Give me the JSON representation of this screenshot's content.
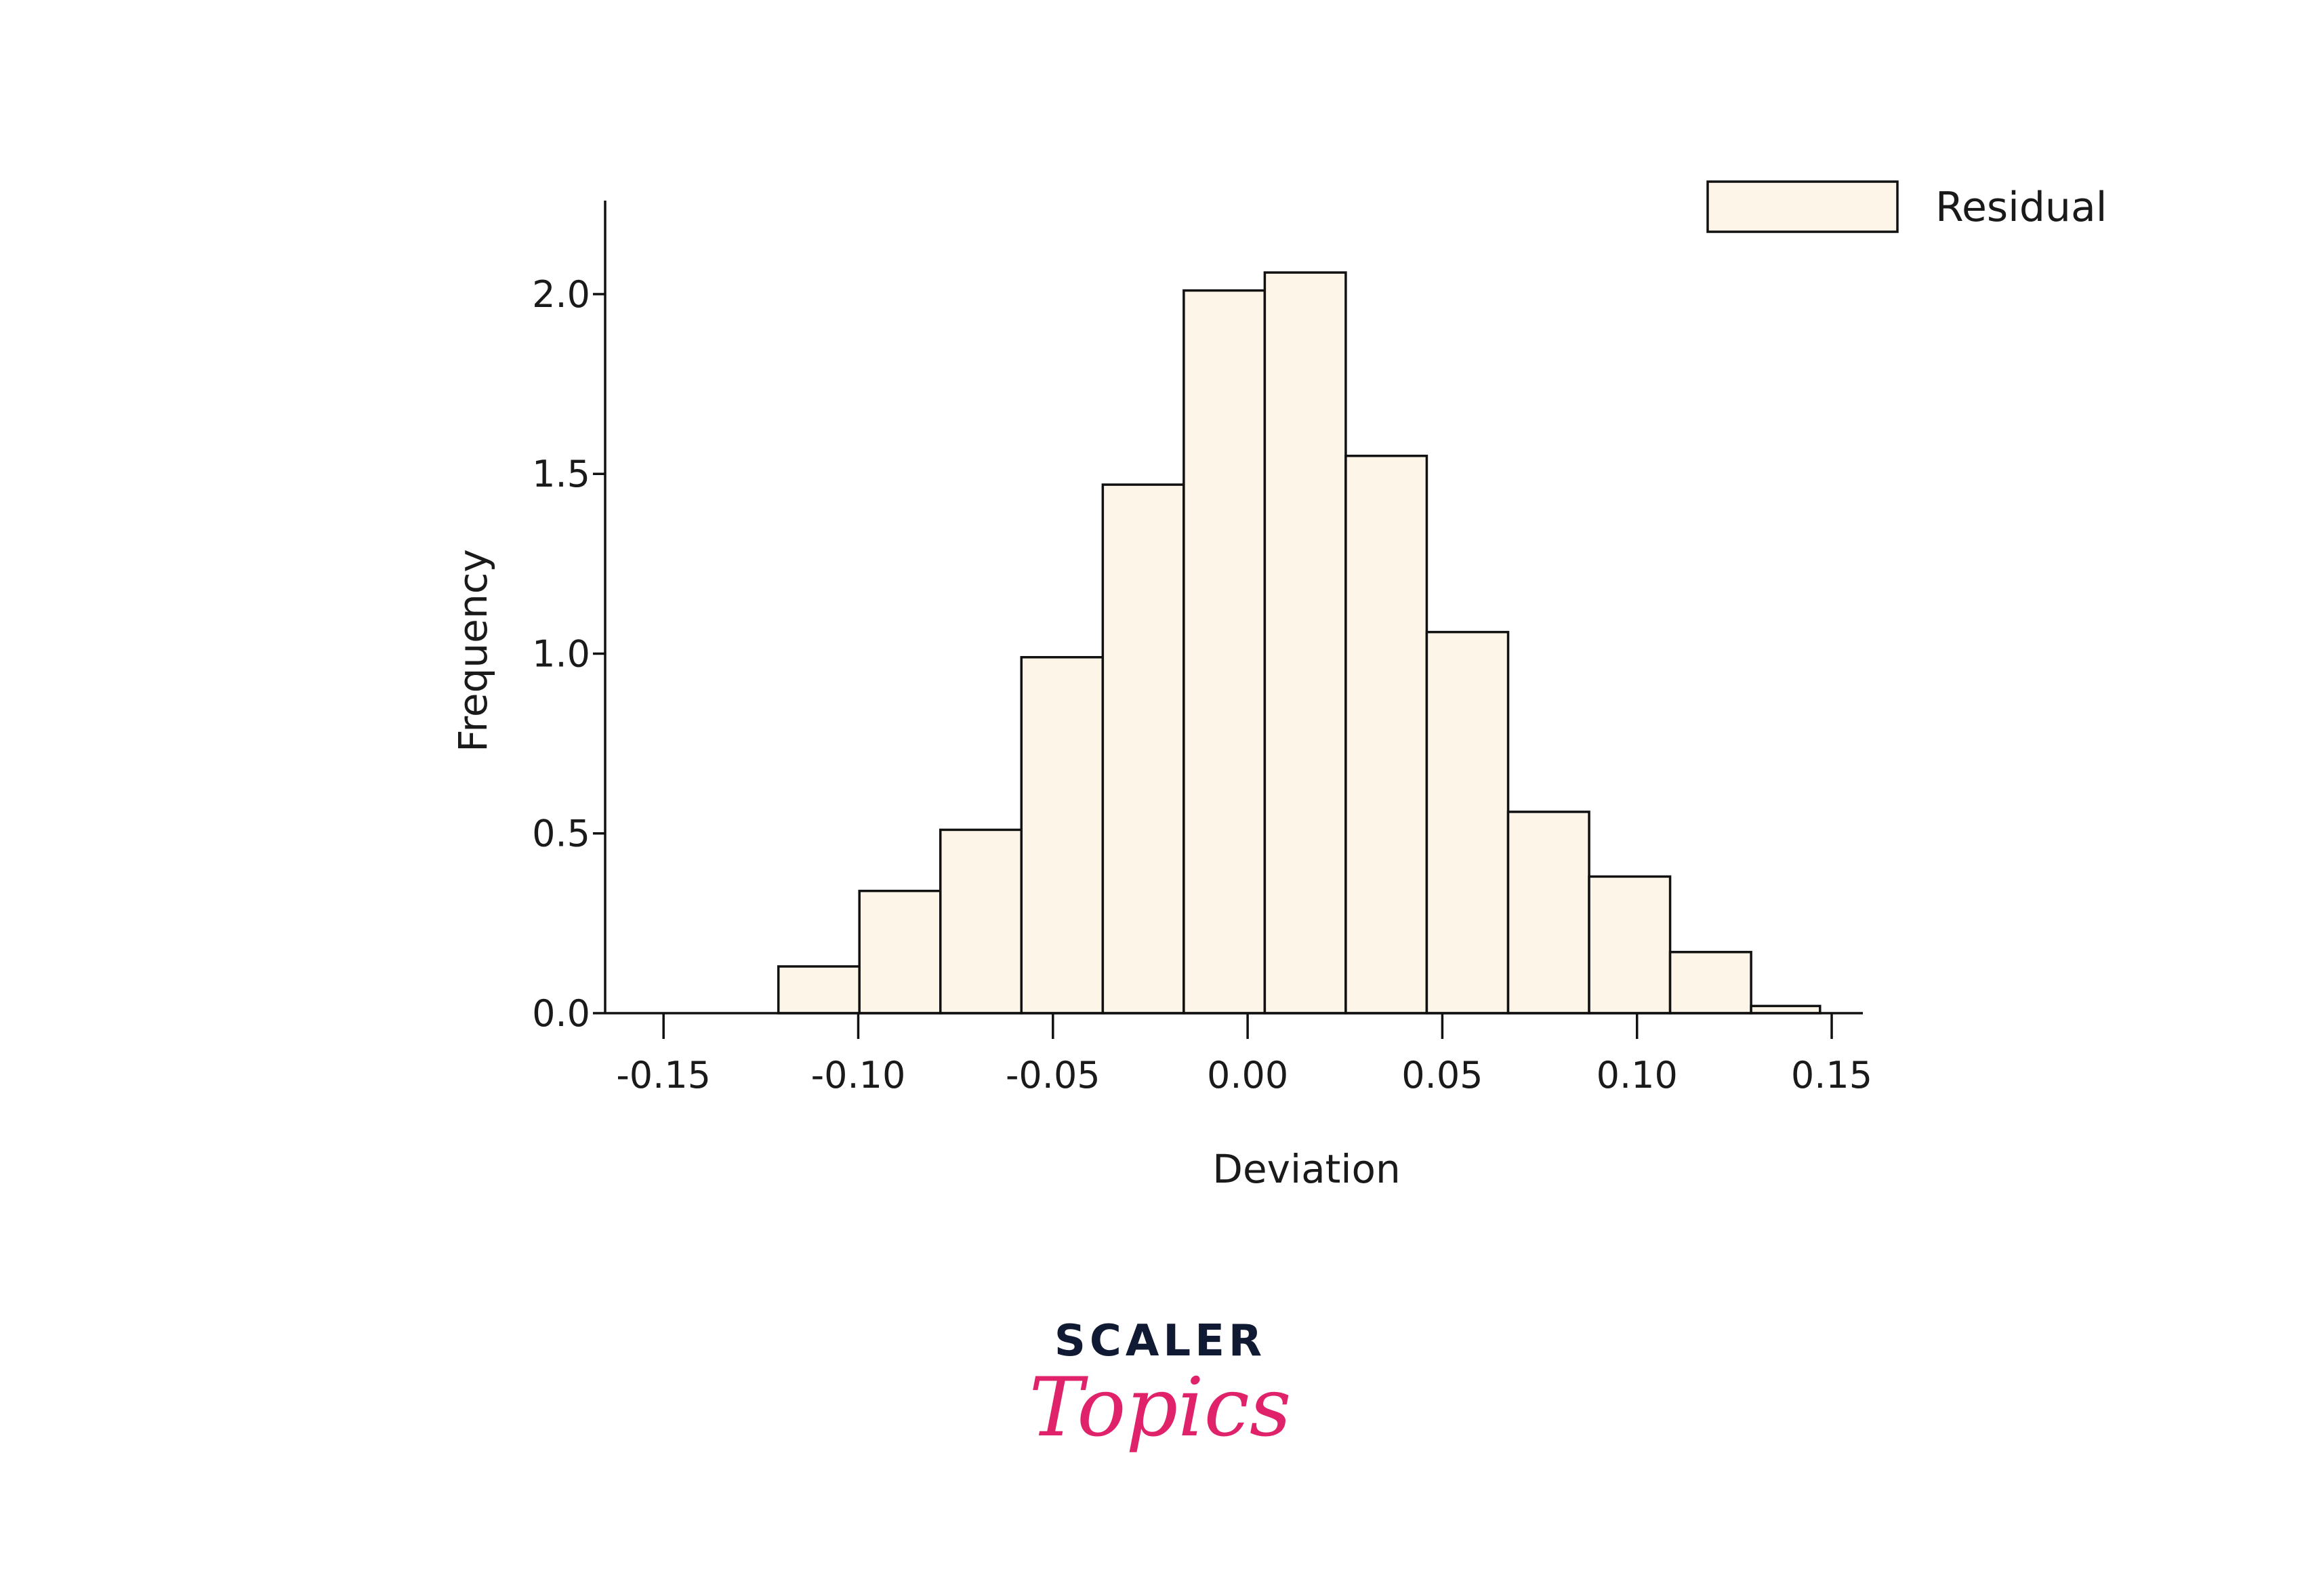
{
  "chart_data": {
    "type": "bar",
    "subtype": "histogram",
    "xlabel": "Deviation",
    "ylabel": "Frequency",
    "xlim": [
      -0.165,
      0.158
    ],
    "ylim": [
      0,
      2.26
    ],
    "xticks": [
      -0.15,
      -0.1,
      -0.05,
      0.0,
      0.05,
      0.1,
      0.15
    ],
    "xtick_labels": [
      "-0.15",
      "-0.10",
      "-0.05",
      "0.00",
      "0.05",
      "0.10",
      "0.15"
    ],
    "yticks": [
      0.0,
      0.5,
      1.0,
      1.5,
      2.0
    ],
    "ytick_labels": [
      "0.0",
      "0.5",
      "1.0",
      "1.5",
      "2.0"
    ],
    "bin_edges": [
      -0.1205,
      -0.0997,
      -0.0789,
      -0.0581,
      -0.0372,
      -0.0164,
      0.0044,
      0.0252,
      0.046,
      0.0669,
      0.0877,
      0.1085,
      0.1293,
      0.147
    ],
    "values": [
      0.13,
      0.34,
      0.51,
      0.99,
      1.47,
      2.01,
      2.06,
      1.55,
      1.06,
      0.56,
      0.38,
      0.17,
      0.02
    ],
    "legend": {
      "position": "top-right",
      "entries": [
        "Residual"
      ]
    },
    "colors": {
      "bar_fill": "#fdf5e8",
      "bar_edge": "#111111"
    },
    "grid": false
  },
  "logo": {
    "top": "SCALER",
    "bottom": "Topics"
  }
}
